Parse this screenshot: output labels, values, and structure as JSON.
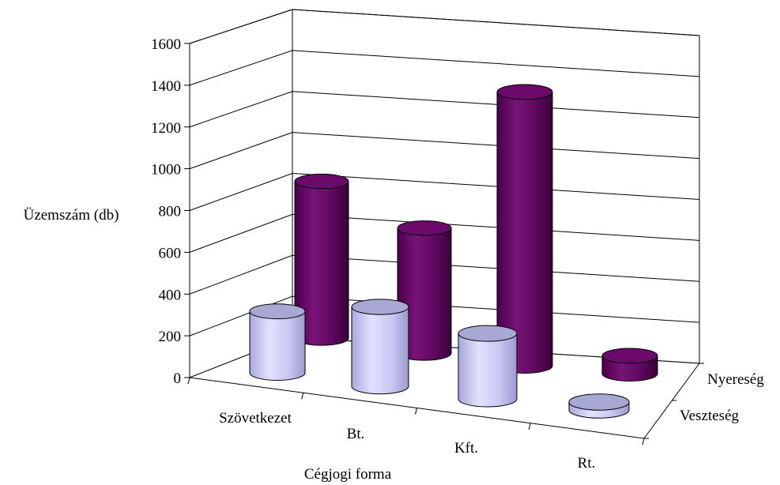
{
  "chart_data": {
    "type": "bar",
    "bar_shape": "cylinder",
    "three_d": true,
    "categories": [
      "Szövetkezet",
      "Bt.",
      "Kft.",
      "Rt."
    ],
    "series": [
      {
        "name": "Nyereség",
        "values": [
          790,
          630,
          1380,
          90
        ],
        "color": "#6b0a6b"
      },
      {
        "name": "Veszteség",
        "values": [
          310,
          400,
          330,
          20
        ],
        "color": "#c4c4f0"
      }
    ],
    "ylabel": "Üzemszám (db)",
    "xlabel": "Cégjogi forma",
    "ylim": [
      0,
      1600
    ],
    "yticks": [
      "0",
      "200",
      "400",
      "600",
      "800",
      "1000",
      "1200",
      "1400",
      "1600"
    ],
    "grid": true,
    "legend": "series-axis-depth"
  }
}
